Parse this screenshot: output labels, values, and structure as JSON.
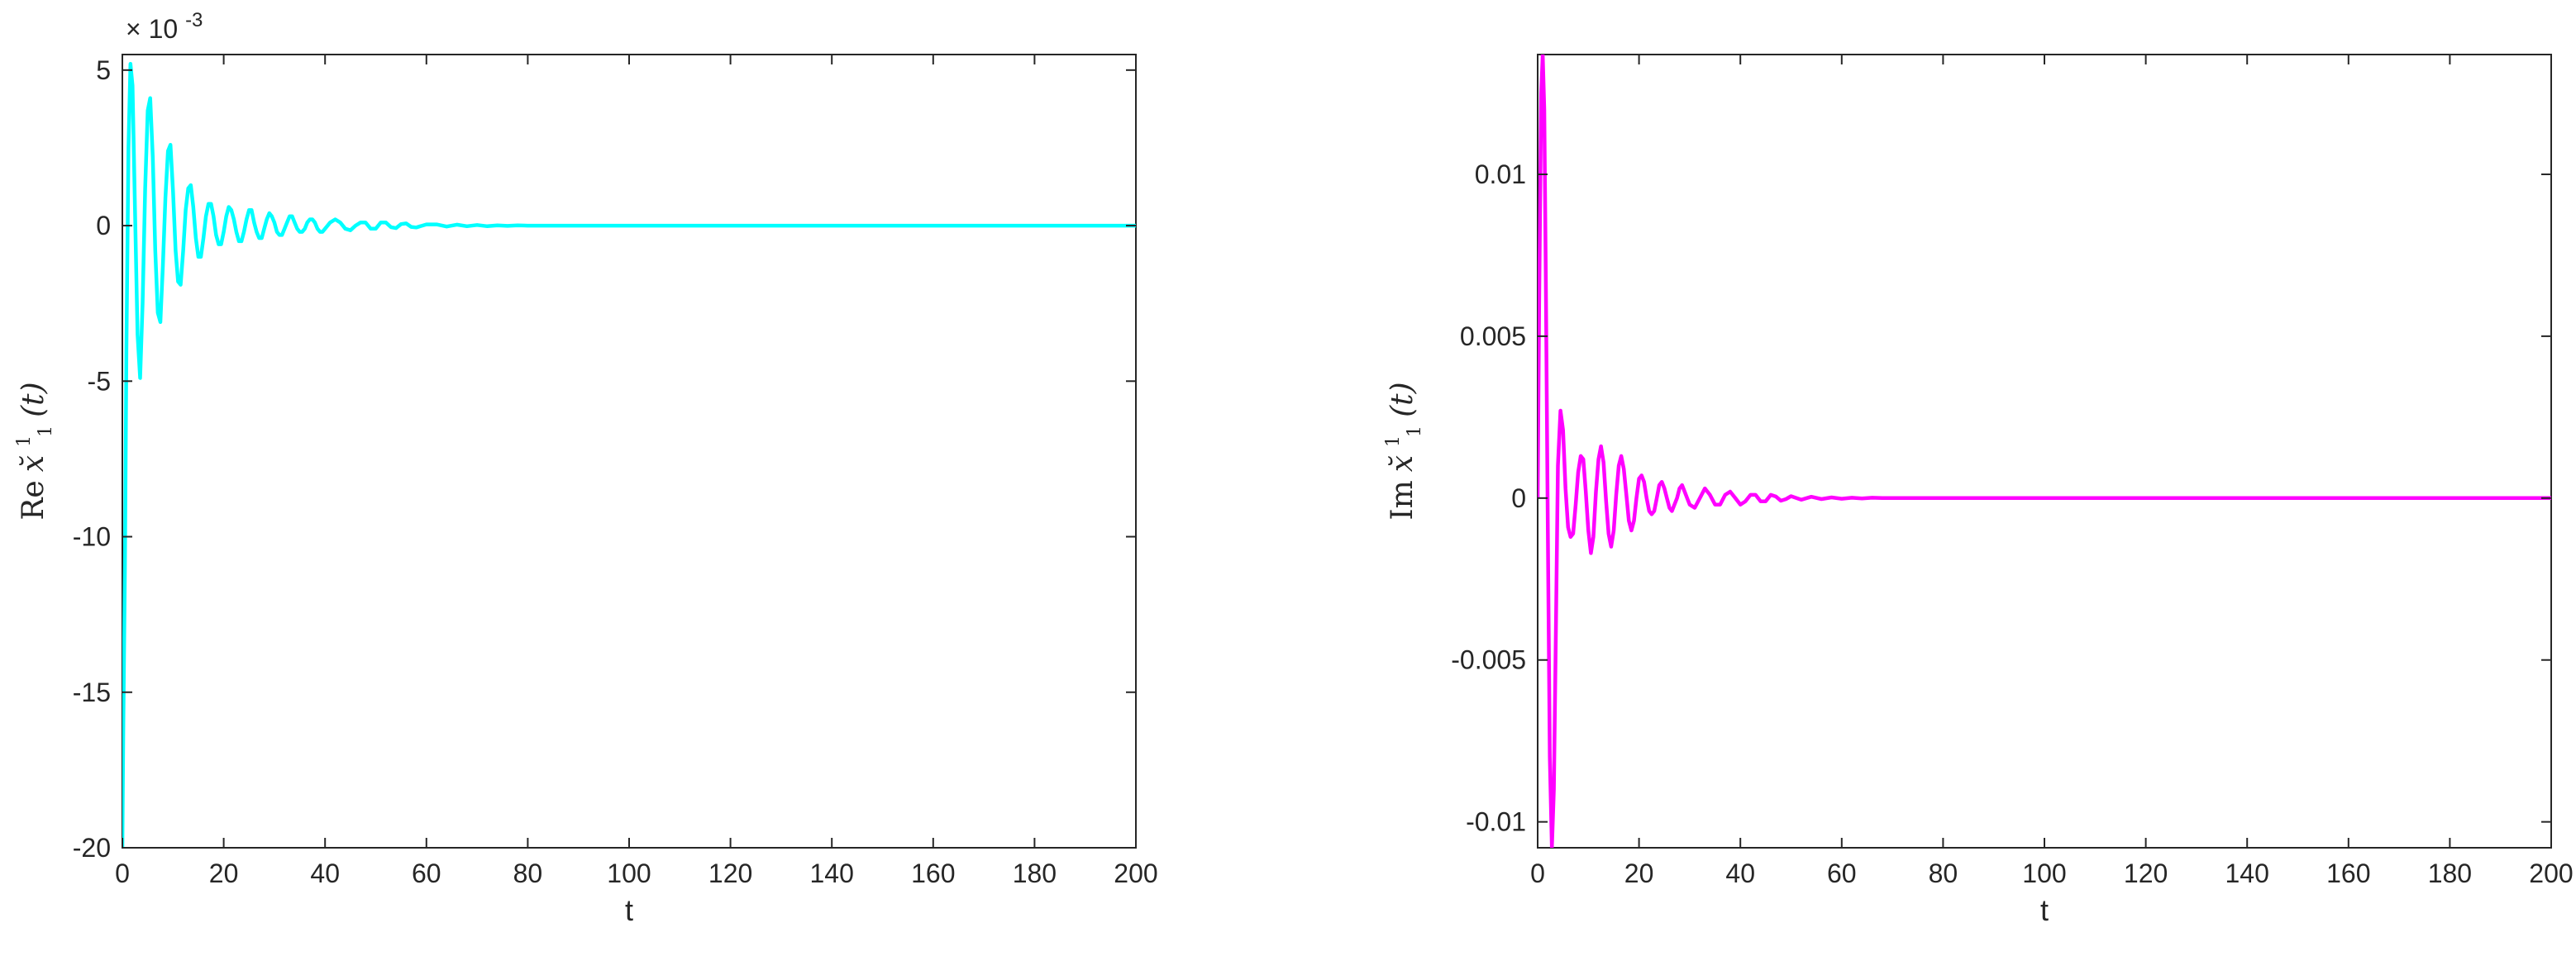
{
  "chart_data": [
    {
      "type": "line",
      "xlabel": "t",
      "ylabel": "Re x˘¹₁(t)",
      "ylabel_parts": {
        "prefix": "Re",
        "var": "x̆",
        "sup": "1",
        "sub": "1",
        "arg": "(t)"
      },
      "xlim": [
        0,
        200
      ],
      "ylim": [
        -0.02,
        0.0055
      ],
      "x_ticks": [
        0,
        20,
        40,
        60,
        80,
        100,
        120,
        140,
        160,
        180,
        200
      ],
      "y_ticks": [
        -0.02,
        -0.015,
        -0.01,
        -0.005,
        0,
        0.005
      ],
      "y_tick_labels": [
        "-20",
        "-15",
        "-10",
        "-5",
        "0",
        "5"
      ],
      "y_exponent_label": "× 10",
      "y_exponent_power": "-3",
      "grid": false,
      "color": "#00ffff",
      "series": [
        {
          "x": [
            0,
            0.2,
            0.5,
            0.8,
            1.2,
            1.6,
            2.0,
            2.5,
            3.0,
            3.5,
            4.0,
            4.5,
            5.0,
            5.5,
            6.0,
            6.5,
            7.0,
            7.5,
            8.0,
            8.5,
            9.0,
            9.5,
            10.0,
            10.5,
            11.0,
            11.5,
            12.0,
            12.5,
            13.0,
            13.5,
            14.0,
            14.5,
            15.0,
            15.5,
            16.0,
            16.5,
            17.0,
            17.5,
            18.0,
            18.5,
            19.0,
            19.5,
            20.0,
            20.5,
            21.0,
            21.5,
            22.0,
            22.5,
            23.0,
            23.5,
            24.0,
            24.5,
            25.0,
            25.5,
            26.0,
            26.5,
            27.0,
            27.5,
            28.0,
            28.5,
            29.0,
            29.5,
            30.0,
            30.5,
            31.0,
            31.5,
            32.0,
            32.5,
            33.0,
            33.5,
            34.0,
            34.5,
            35.0,
            35.5,
            36.0,
            36.5,
            37.0,
            37.5,
            38.0,
            38.5,
            39.0,
            39.5,
            40.0,
            41.0,
            42.0,
            43.0,
            44.0,
            45.0,
            46.0,
            47.0,
            48.0,
            49.0,
            50.0,
            51.0,
            52.0,
            53.0,
            54.0,
            55.0,
            56.0,
            57.0,
            58.0,
            60.0,
            62.0,
            64.0,
            66.0,
            68.0,
            70.0,
            72.0,
            74.0,
            76.0,
            78.0,
            80.0,
            85.0,
            90.0,
            95.0,
            100.0,
            120.0,
            140.0,
            160.0,
            180.0,
            200.0
          ],
          "y": [
            -0.02,
            -0.016,
            -0.011,
            -0.004,
            0.0025,
            0.0052,
            0.0045,
            0.0005,
            -0.0035,
            -0.0049,
            -0.0025,
            0.0012,
            0.0037,
            0.0041,
            0.0022,
            -0.0008,
            -0.0028,
            -0.0031,
            -0.0013,
            0.0009,
            0.0024,
            0.0026,
            0.0011,
            -0.0008,
            -0.0018,
            -0.0019,
            -0.0008,
            0.0005,
            0.0012,
            0.0013,
            0.0006,
            -0.0004,
            -0.001,
            -0.001,
            -0.0004,
            0.0003,
            0.0007,
            0.0007,
            0.0003,
            -0.0003,
            -0.0006,
            -0.0006,
            -0.0002,
            0.0003,
            0.0006,
            0.0005,
            0.0002,
            -0.0002,
            -0.0005,
            -0.0005,
            -0.0002,
            0.0002,
            0.0005,
            0.0005,
            0.0001,
            -0.0002,
            -0.0004,
            -0.0004,
            -0.0001,
            0.0002,
            0.0004,
            0.0003,
            0.0001,
            -0.0002,
            -0.0003,
            -0.0003,
            -0.0001,
            0.0001,
            0.0003,
            0.0003,
            0.0001,
            -0.0001,
            -0.0002,
            -0.0002,
            -0.0001,
            0.0001,
            0.0002,
            0.0002,
            0.0001,
            -0.0001,
            -0.0002,
            -0.0002,
            -0.0001,
            0.0001,
            0.0002,
            0.0001,
            -0.0001,
            -0.00015,
            0.0,
            0.0001,
            0.0001,
            -0.0001,
            -0.0001,
            0.0001,
            0.0001,
            -5e-05,
            -8e-05,
            5e-05,
            7e-05,
            -4e-05,
            -6e-05,
            4e-05,
            4e-05,
            -3e-05,
            3e-05,
            -2e-05,
            2e-05,
            -2e-05,
            1e-05,
            -1e-05,
            1e-05,
            0.0,
            0.0,
            0.0,
            0.0,
            0.0,
            0.0,
            0.0,
            0.0,
            0.0,
            0.0
          ]
        }
      ]
    },
    {
      "type": "line",
      "xlabel": "t",
      "ylabel": "Im x˘¹₁(t)",
      "ylabel_parts": {
        "prefix": "Im",
        "var": "x̆",
        "sup": "1",
        "sub": "1",
        "arg": "(t)"
      },
      "xlim": [
        0,
        200
      ],
      "ylim": [
        -0.0108,
        0.0137
      ],
      "x_ticks": [
        0,
        20,
        40,
        60,
        80,
        100,
        120,
        140,
        160,
        180,
        200
      ],
      "y_ticks": [
        -0.01,
        -0.005,
        0,
        0.005,
        0.01
      ],
      "y_tick_labels": [
        "-0.01",
        "-0.005",
        "0",
        "0.005",
        "0.01"
      ],
      "grid": false,
      "color": "#ff00ff",
      "series": [
        {
          "x": [
            0,
            0.3,
            0.7,
            1.0,
            1.3,
            1.6,
            2.0,
            2.4,
            2.8,
            3.2,
            3.6,
            4.0,
            4.5,
            5.0,
            5.5,
            6.0,
            6.5,
            7.0,
            7.5,
            8.0,
            8.5,
            9.0,
            9.5,
            10.0,
            10.5,
            11.0,
            11.5,
            12.0,
            12.5,
            13.0,
            13.5,
            14.0,
            14.5,
            15.0,
            15.5,
            16.0,
            16.5,
            17.0,
            17.5,
            18.0,
            18.5,
            19.0,
            19.5,
            20.0,
            20.5,
            21.0,
            21.5,
            22.0,
            22.5,
            23.0,
            23.5,
            24.0,
            24.5,
            25.0,
            25.5,
            26.0,
            26.5,
            27.0,
            27.5,
            28.0,
            28.5,
            29.0,
            29.5,
            30.0,
            31.0,
            32.0,
            33.0,
            34.0,
            35.0,
            36.0,
            37.0,
            38.0,
            39.0,
            40.0,
            41.0,
            42.0,
            43.0,
            44.0,
            45.0,
            46.0,
            47.0,
            48.0,
            49.0,
            50.0,
            52.0,
            54.0,
            56.0,
            58.0,
            60.0,
            62.0,
            64.0,
            66.0,
            68.0,
            70.0,
            72.0,
            74.0,
            76.0,
            78.0,
            80.0,
            90.0,
            100.0,
            120.0,
            140.0,
            160.0,
            180.0,
            200.0
          ],
          "y": [
            0.0,
            0.006,
            0.0125,
            0.0137,
            0.012,
            0.007,
            -0.001,
            -0.008,
            -0.0108,
            -0.009,
            -0.004,
            0.001,
            0.0027,
            0.0021,
            0.0003,
            -0.0009,
            -0.0012,
            -0.0011,
            -0.0002,
            0.0008,
            0.0013,
            0.0012,
            0.0002,
            -0.001,
            -0.0017,
            -0.0012,
            0.0002,
            0.0012,
            0.0016,
            0.0011,
            -0.0001,
            -0.0011,
            -0.0015,
            -0.001,
            0.0001,
            0.001,
            0.0013,
            0.0009,
            0.0001,
            -0.0007,
            -0.001,
            -0.0007,
            0.0,
            0.0006,
            0.0007,
            0.0005,
            0.0,
            -0.0004,
            -0.0005,
            -0.0004,
            0.0,
            0.0004,
            0.0005,
            0.0003,
            0.0,
            -0.0003,
            -0.0004,
            -0.0002,
            0.0,
            0.0003,
            0.0004,
            0.0002,
            0.0,
            -0.0002,
            -0.0003,
            0.0,
            0.0003,
            0.0001,
            -0.0002,
            -0.0002,
            0.0001,
            0.0002,
            0.0,
            -0.0002,
            -0.0001,
            0.0001,
            0.0001,
            -0.0001,
            -0.0001,
            0.0001,
            5e-05,
            -8e-05,
            -3e-05,
            6e-05,
            -5e-05,
            4e-05,
            -3e-05,
            2e-05,
            -2e-05,
            1e-05,
            -1e-05,
            1e-05,
            0.0,
            0.0,
            0.0,
            0.0,
            0.0,
            0.0,
            0.0,
            0.0,
            0.0,
            0.0,
            0.0,
            0.0,
            0.0,
            0.0
          ]
        }
      ]
    }
  ]
}
